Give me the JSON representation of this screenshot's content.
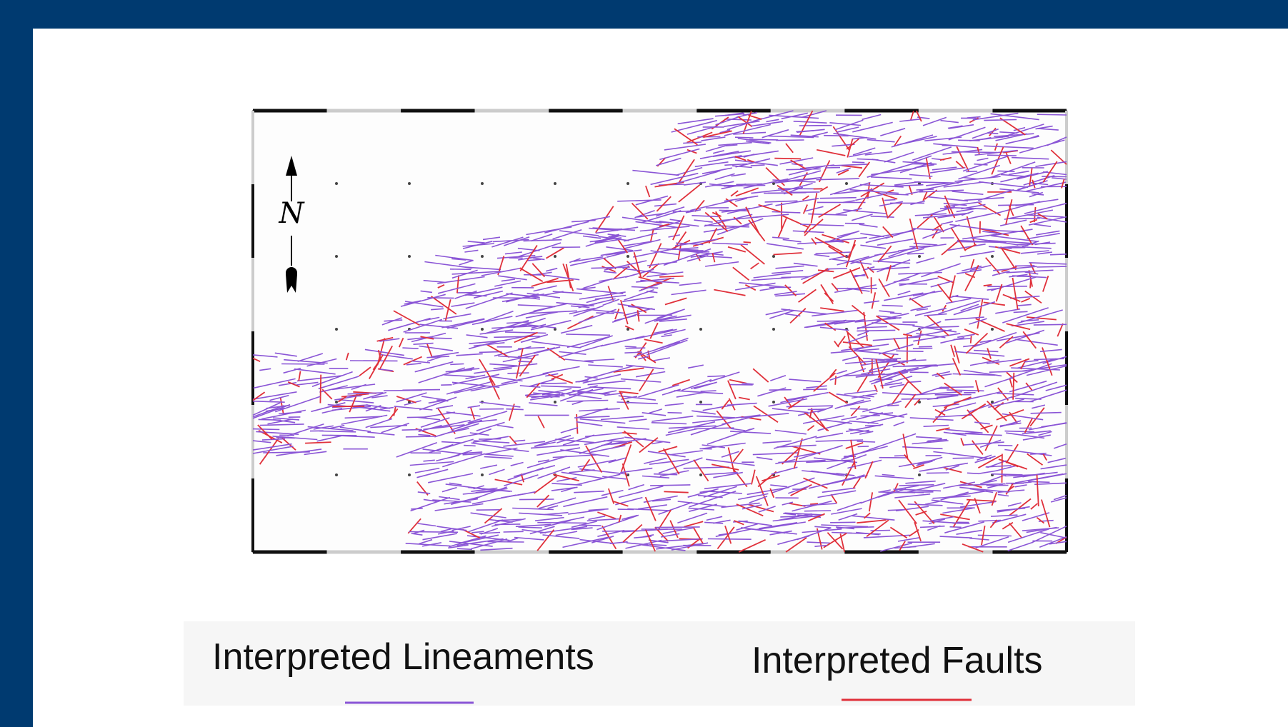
{
  "map": {
    "north_label": "N",
    "legend": [
      {
        "label": "Interpreted Lineaments",
        "color": "#8a55d6"
      },
      {
        "label": "Interpreted Faults",
        "color": "#e0303a"
      }
    ]
  }
}
